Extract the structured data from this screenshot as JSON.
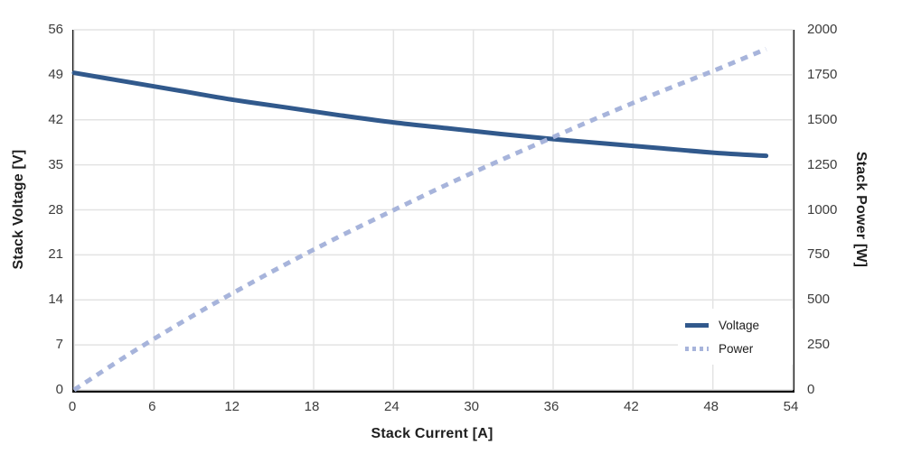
{
  "chart_data": {
    "type": "line",
    "title": "",
    "xlabel": "Stack Current [A]",
    "ylabel_left": "Stack Voltage [V]",
    "ylabel_right": "Stack Power [W]",
    "xlim": [
      0,
      54
    ],
    "ylim_left": [
      0,
      56
    ],
    "ylim_right": [
      0,
      2000
    ],
    "x_ticks": [
      0,
      6,
      12,
      18,
      24,
      30,
      36,
      42,
      48,
      54
    ],
    "left_ticks": [
      0,
      7,
      14,
      21,
      28,
      35,
      42,
      49,
      56
    ],
    "right_ticks": [
      0,
      250,
      500,
      750,
      1000,
      1250,
      1500,
      1750,
      2000
    ],
    "grid": true,
    "legend_position": "inside-right",
    "series": [
      {
        "name": "Voltage",
        "axis": "left",
        "style": "solid",
        "color": "#31598c",
        "x": [
          0,
          4,
          8,
          12,
          16,
          20,
          24,
          28,
          32,
          36,
          40,
          44,
          48,
          52
        ],
        "y": [
          49.3,
          47.9,
          46.5,
          45.1,
          43.9,
          42.7,
          41.6,
          40.7,
          39.8,
          39.0,
          38.3,
          37.6,
          36.9,
          36.4
        ]
      },
      {
        "name": "Power",
        "axis": "right",
        "style": "dashed",
        "color": "#a7b4db",
        "x": [
          0,
          4,
          8,
          12,
          16,
          20,
          24,
          28,
          32,
          36,
          40,
          44,
          48,
          52
        ],
        "y": [
          0,
          192,
          372,
          541,
          702,
          854,
          998,
          1140,
          1274,
          1404,
          1532,
          1654,
          1771,
          1893
        ]
      }
    ],
    "colors": {
      "grid": "#e3e3e3",
      "axis": "#111111",
      "tick_text": "#3d3d3d",
      "title_text": "#1f1f1f",
      "background": "#ffffff"
    }
  }
}
